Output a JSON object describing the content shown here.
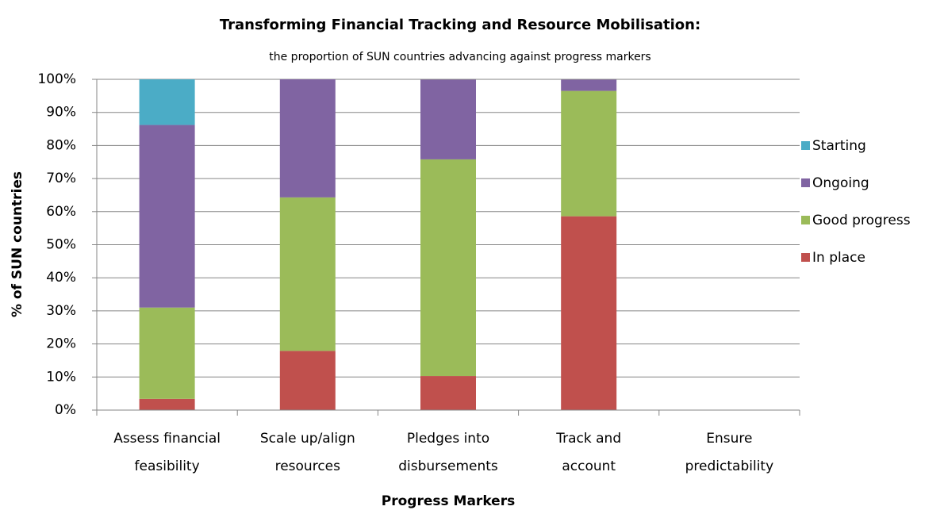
{
  "chart_data": {
    "type": "stacked_bar",
    "title": "Transforming Financial Tracking and Resource Mobilisation:",
    "subtitle": "the proportion of SUN countries advancing against progress markers",
    "x_label": "Progress Markers",
    "y_label": "% of SUN countries",
    "categories": [
      "Assess financial\nfeasibility",
      "Scale up/align\nresources",
      "Pledges into\ndisbursements",
      "Track and\naccount",
      "Ensure\npredictability"
    ],
    "series": [
      {
        "name": "In place",
        "color": "#c0504d",
        "values": [
          3.4,
          17.9,
          10.3,
          58.6,
          0
        ]
      },
      {
        "name": "Good progress",
        "color": "#9bbb59",
        "values": [
          27.6,
          46.4,
          65.5,
          37.9,
          0
        ]
      },
      {
        "name": "Ongoing",
        "color": "#8064a2",
        "values": [
          55.2,
          35.7,
          24.1,
          3.4,
          0
        ]
      },
      {
        "name": "Starting",
        "color": "#4bacc6",
        "values": [
          13.8,
          0,
          0,
          0,
          0
        ]
      }
    ],
    "ylim": [
      0,
      100
    ],
    "yticks": [
      {
        "value": 0,
        "label": "0%"
      },
      {
        "value": 10,
        "label": "10%"
      },
      {
        "value": 20,
        "label": "20%"
      },
      {
        "value": 30,
        "label": "30%"
      },
      {
        "value": 40,
        "label": "40%"
      },
      {
        "value": 50,
        "label": "50%"
      },
      {
        "value": 60,
        "label": "60%"
      },
      {
        "value": 70,
        "label": "70%"
      },
      {
        "value": 80,
        "label": "80%"
      },
      {
        "value": 90,
        "label": "90%"
      },
      {
        "value": 100,
        "label": "100%"
      }
    ],
    "grid": true,
    "legend": "right"
  }
}
